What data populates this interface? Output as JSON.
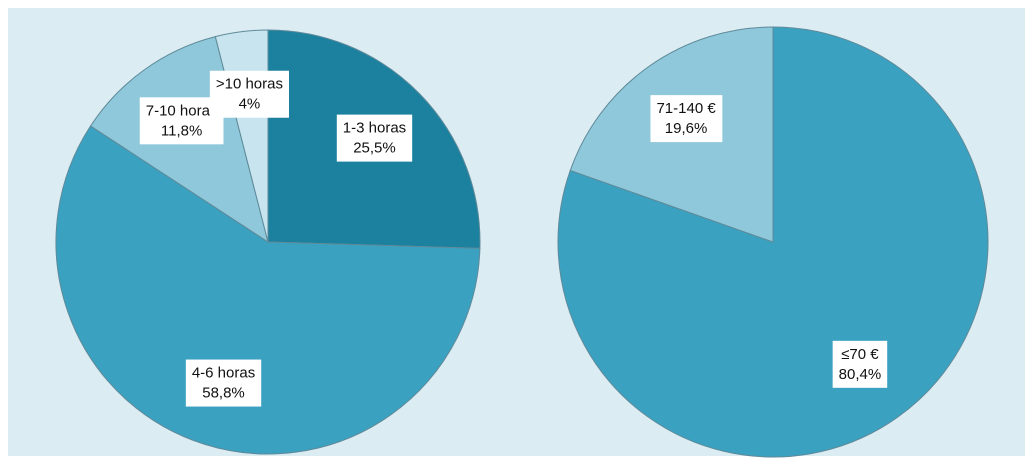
{
  "chart_data": [
    {
      "type": "pie",
      "categories": [
        "1-3 horas",
        "4-6 horas",
        "7-10 horas",
        ">10 horas"
      ],
      "values": [
        25.5,
        58.8,
        11.8,
        4
      ],
      "value_labels": [
        "25,5%",
        "58,8%",
        "11,8%",
        "4%"
      ],
      "colors": [
        "#1c819f",
        "#3aa1c1",
        "#8ec8da",
        "#c8e4ee"
      ]
    },
    {
      "type": "pie",
      "categories": [
        "≤70 €",
        "71-140 €"
      ],
      "values": [
        80.4,
        19.6
      ],
      "value_labels": [
        "80,4%",
        "19,6%"
      ],
      "colors": [
        "#3aa1c1",
        "#8ec8da"
      ]
    }
  ]
}
